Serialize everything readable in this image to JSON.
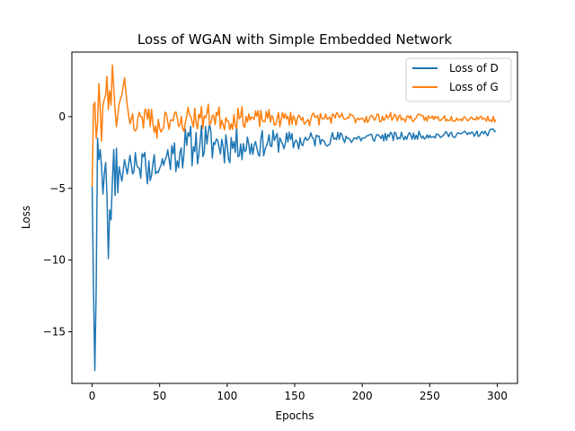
{
  "chart_data": {
    "type": "line",
    "title": "Loss of WGAN with Simple Embedded Network",
    "xlabel": "Epochs",
    "ylabel": "Loss",
    "xlim": [
      -15,
      315
    ],
    "ylim": [
      -18.6,
      4.5
    ],
    "xticks": [
      0,
      50,
      100,
      150,
      200,
      250,
      300
    ],
    "yticks": [
      -15,
      -10,
      -5,
      0
    ],
    "yticks_text": [
      "−15",
      "−10",
      "−5",
      "0"
    ],
    "grid": false,
    "legend_position": "top-right",
    "series": [
      {
        "name": "Loss of D",
        "color": "#1f77b4",
        "anchors": [
          [
            0,
            -4.8
          ],
          [
            1,
            -12.0
          ],
          [
            2,
            -17.7
          ],
          [
            3,
            -12.0
          ],
          [
            4,
            -1.5
          ],
          [
            5,
            -3.0
          ],
          [
            6,
            -2.3
          ],
          [
            7,
            -3.5
          ],
          [
            8,
            -5.4
          ],
          [
            9,
            -4.0
          ],
          [
            10,
            -3.2
          ],
          [
            11,
            -5.5
          ],
          [
            12,
            -9.9
          ],
          [
            13,
            -6.5
          ],
          [
            14,
            -7.2
          ],
          [
            15,
            -4.5
          ],
          [
            16,
            -2.3
          ],
          [
            17,
            -5.5
          ],
          [
            18,
            -2.2
          ],
          [
            19,
            -5.3
          ],
          [
            20,
            -3.5
          ],
          [
            22,
            -4.5
          ],
          [
            24,
            -3.0
          ],
          [
            26,
            -4.0
          ],
          [
            28,
            -2.7
          ],
          [
            30,
            -4.0
          ],
          [
            32,
            -2.5
          ],
          [
            35,
            -3.6
          ],
          [
            38,
            -2.8
          ],
          [
            40,
            -3.8
          ],
          [
            45,
            -3.3
          ],
          [
            50,
            -3.6
          ],
          [
            55,
            -2.8
          ],
          [
            60,
            -2.6
          ],
          [
            65,
            -2.5
          ],
          [
            70,
            -2.0
          ],
          [
            75,
            -2.1
          ],
          [
            80,
            -1.7
          ],
          [
            85,
            -1.9
          ],
          [
            90,
            -1.8
          ],
          [
            100,
            -2.0
          ],
          [
            110,
            -1.9
          ],
          [
            120,
            -2.0
          ],
          [
            130,
            -1.8
          ],
          [
            140,
            -1.7
          ],
          [
            150,
            -1.8
          ],
          [
            160,
            -1.6
          ],
          [
            170,
            -1.6
          ],
          [
            180,
            -1.5
          ],
          [
            190,
            -1.5
          ],
          [
            200,
            -1.5
          ],
          [
            210,
            -1.4
          ],
          [
            220,
            -1.4
          ],
          [
            230,
            -1.4
          ],
          [
            240,
            -1.3
          ],
          [
            250,
            -1.3
          ],
          [
            260,
            -1.3
          ],
          [
            270,
            -1.2
          ],
          [
            280,
            -1.2
          ],
          [
            290,
            -1.2
          ],
          [
            299,
            -1.0
          ]
        ],
        "noise": [
          0.7,
          1.2,
          1.6,
          0.9,
          0.5,
          0.35,
          0.25,
          0.2
        ],
        "seed": 11
      },
      {
        "name": "Loss of G",
        "color": "#ff7f0e",
        "anchors": [
          [
            0,
            -4.9
          ],
          [
            1,
            0.8
          ],
          [
            2,
            1.0
          ],
          [
            3,
            -1.5
          ],
          [
            4,
            -0.5
          ],
          [
            5,
            2.3
          ],
          [
            6,
            0.5
          ],
          [
            7,
            -1.7
          ],
          [
            8,
            0.8
          ],
          [
            9,
            1.2
          ],
          [
            10,
            1.5
          ],
          [
            11,
            2.8
          ],
          [
            12,
            0.5
          ],
          [
            13,
            1.8
          ],
          [
            14,
            0.8
          ],
          [
            15,
            3.6
          ],
          [
            16,
            2.0
          ],
          [
            17,
            0.4
          ],
          [
            18,
            -0.7
          ],
          [
            20,
            0.9
          ],
          [
            22,
            1.5
          ],
          [
            24,
            2.7
          ],
          [
            26,
            0.8
          ],
          [
            28,
            -0.5
          ],
          [
            30,
            0.2
          ],
          [
            32,
            -1.0
          ],
          [
            35,
            0.3
          ],
          [
            38,
            -0.8
          ],
          [
            40,
            0.5
          ],
          [
            45,
            -0.5
          ],
          [
            50,
            -0.8
          ],
          [
            55,
            0.2
          ],
          [
            60,
            -0.3
          ],
          [
            65,
            -0.6
          ],
          [
            70,
            0.0
          ],
          [
            80,
            -0.1
          ],
          [
            90,
            0.1
          ],
          [
            100,
            -0.3
          ],
          [
            110,
            0.0
          ],
          [
            120,
            -0.2
          ],
          [
            130,
            -0.1
          ],
          [
            140,
            -0.2
          ],
          [
            150,
            -0.1
          ],
          [
            160,
            -0.2
          ],
          [
            170,
            -0.1
          ],
          [
            180,
            -0.1
          ],
          [
            190,
            -0.1
          ],
          [
            200,
            -0.1
          ],
          [
            210,
            -0.1
          ],
          [
            220,
            0.0
          ],
          [
            230,
            -0.1
          ],
          [
            240,
            -0.1
          ],
          [
            250,
            -0.1
          ],
          [
            260,
            -0.1
          ],
          [
            270,
            -0.1
          ],
          [
            280,
            -0.1
          ],
          [
            290,
            -0.1
          ],
          [
            299,
            -0.2
          ]
        ],
        "noise": [
          0.9,
          1.0,
          0.9,
          0.6,
          0.45,
          0.3,
          0.25,
          0.2
        ],
        "seed": 23
      }
    ]
  }
}
